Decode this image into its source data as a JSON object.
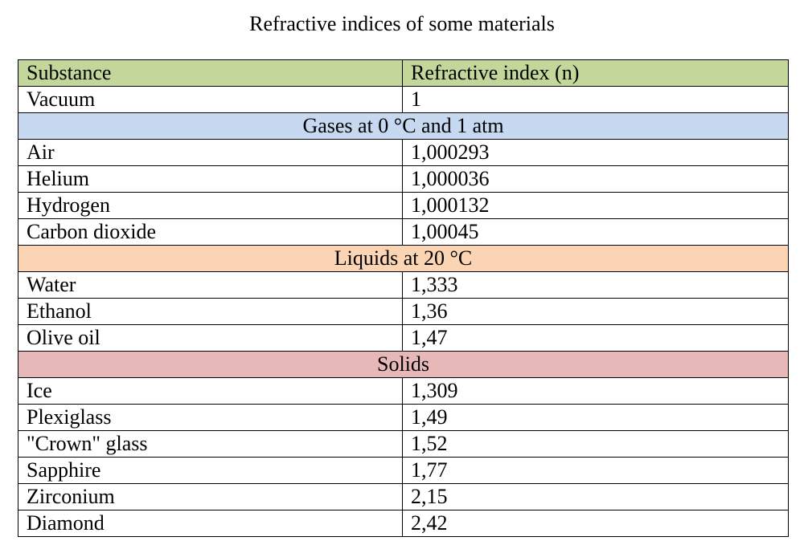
{
  "title": "Refractive indices of some materials",
  "header": {
    "substance": "Substance",
    "index": "Refractive index (n)"
  },
  "colors": {
    "header_bg": "#c4d79b",
    "gases_bg": "#c6d9f0",
    "liquids_bg": "#fbd4b4",
    "solids_bg": "#e6b9b8"
  },
  "vacuum": {
    "substance": "Vacuum",
    "index": "1"
  },
  "sections": {
    "gases": {
      "label": "Gases at 0 °C and 1 atm",
      "rows": [
        {
          "substance": "Air",
          "index": "1,000293"
        },
        {
          "substance": "Helium",
          "index": "1,000036"
        },
        {
          "substance": "Hydrogen",
          "index": "1,000132"
        },
        {
          "substance": "Carbon dioxide",
          "index": "1,00045"
        }
      ]
    },
    "liquids": {
      "label": "Liquids at 20 °C",
      "rows": [
        {
          "substance": "Water",
          "index": "1,333"
        },
        {
          "substance": "Ethanol",
          "index": "1,36"
        },
        {
          "substance": "Olive oil",
          "index": "1,47"
        }
      ]
    },
    "solids": {
      "label": "Solids",
      "rows": [
        {
          "substance": "Ice",
          "index": "1,309"
        },
        {
          "substance": "Plexiglass",
          "index": "1,49"
        },
        {
          "substance": "\"Crown\" glass",
          "index": "1,52"
        },
        {
          "substance": "Sapphire",
          "index": "1,77"
        },
        {
          "substance": "Zirconium",
          "index": "2,15"
        },
        {
          "substance": "Diamond",
          "index": "2,42"
        }
      ]
    }
  }
}
